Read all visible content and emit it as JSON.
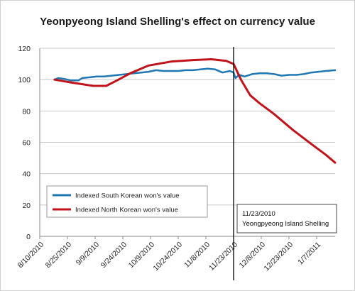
{
  "chart_data": {
    "type": "line",
    "title": "Yeonpyeong Island Shelling's effect on currency value",
    "xlabel": "",
    "ylabel": "",
    "ylim": [
      0,
      120
    ],
    "yticks": [
      0,
      20,
      40,
      60,
      80,
      100,
      120
    ],
    "xlim": [
      "2010-08-10",
      "2011-01-17"
    ],
    "xticks": [
      "8/10/2010",
      "8/25/2010",
      "9/9/2010",
      "9/24/2010",
      "10/9/2010",
      "10/24/2010",
      "11/8/2010",
      "11/23/2010",
      "12/8/2010",
      "12/23/2010",
      "1/7/2011"
    ],
    "grid": {
      "horizontal": true,
      "vertical": false
    },
    "legend": {
      "placement": "lower-left"
    },
    "series": [
      {
        "name": "Indexed South Korean  won's value",
        "color": "#1f77b4",
        "x": [
          "2010-08-18",
          "2010-08-20",
          "2010-08-23",
          "2010-08-27",
          "2010-08-31",
          "2010-09-02",
          "2010-09-06",
          "2010-09-10",
          "2010-09-14",
          "2010-09-18",
          "2010-09-22",
          "2010-09-26",
          "2010-09-30",
          "2010-10-04",
          "2010-10-08",
          "2010-10-12",
          "2010-10-16",
          "2010-10-20",
          "2010-10-24",
          "2010-10-28",
          "2010-11-01",
          "2010-11-05",
          "2010-11-09",
          "2010-11-13",
          "2010-11-17",
          "2010-11-21",
          "2010-11-23",
          "2010-11-24",
          "2010-11-26",
          "2010-11-29",
          "2010-12-03",
          "2010-12-07",
          "2010-12-11",
          "2010-12-15",
          "2010-12-19",
          "2010-12-23",
          "2010-12-27",
          "2010-12-31",
          "2011-01-04",
          "2011-01-08",
          "2011-01-12",
          "2011-01-17"
        ],
        "values": [
          100,
          101,
          100.5,
          99.5,
          99.5,
          101,
          101.5,
          102,
          102,
          102.5,
          103,
          103.5,
          104,
          104.5,
          105,
          106,
          105.5,
          105.5,
          105.5,
          106,
          106,
          106.5,
          107,
          106.5,
          104.5,
          105.5,
          104.5,
          101,
          103,
          102,
          103.5,
          104,
          104,
          103.5,
          102.5,
          103,
          103,
          103.5,
          104.5,
          105,
          105.5,
          106
        ]
      },
      {
        "name": "Indexed North Korean  won's value",
        "color": "#c0141a",
        "x": [
          "2010-08-18",
          "2010-08-28",
          "2010-09-08",
          "2010-09-15",
          "2010-09-20",
          "2010-09-28",
          "2010-10-08",
          "2010-10-20",
          "2010-11-01",
          "2010-11-11",
          "2010-11-19",
          "2010-11-23",
          "2010-11-27",
          "2010-12-02",
          "2010-12-07",
          "2010-12-15",
          "2010-12-25",
          "2011-01-04",
          "2011-01-12",
          "2011-01-17"
        ],
        "values": [
          100,
          98,
          96,
          96,
          99,
          104,
          109,
          111.5,
          112.5,
          113,
          112,
          110,
          100,
          90,
          85,
          78,
          68,
          59,
          52,
          47
        ]
      }
    ],
    "annotations": [
      {
        "x": "2010-11-23",
        "type": "vertical-line",
        "label_lines": [
          "11/23/2010",
          "Yeongpyeong Island Shelling"
        ]
      }
    ]
  }
}
